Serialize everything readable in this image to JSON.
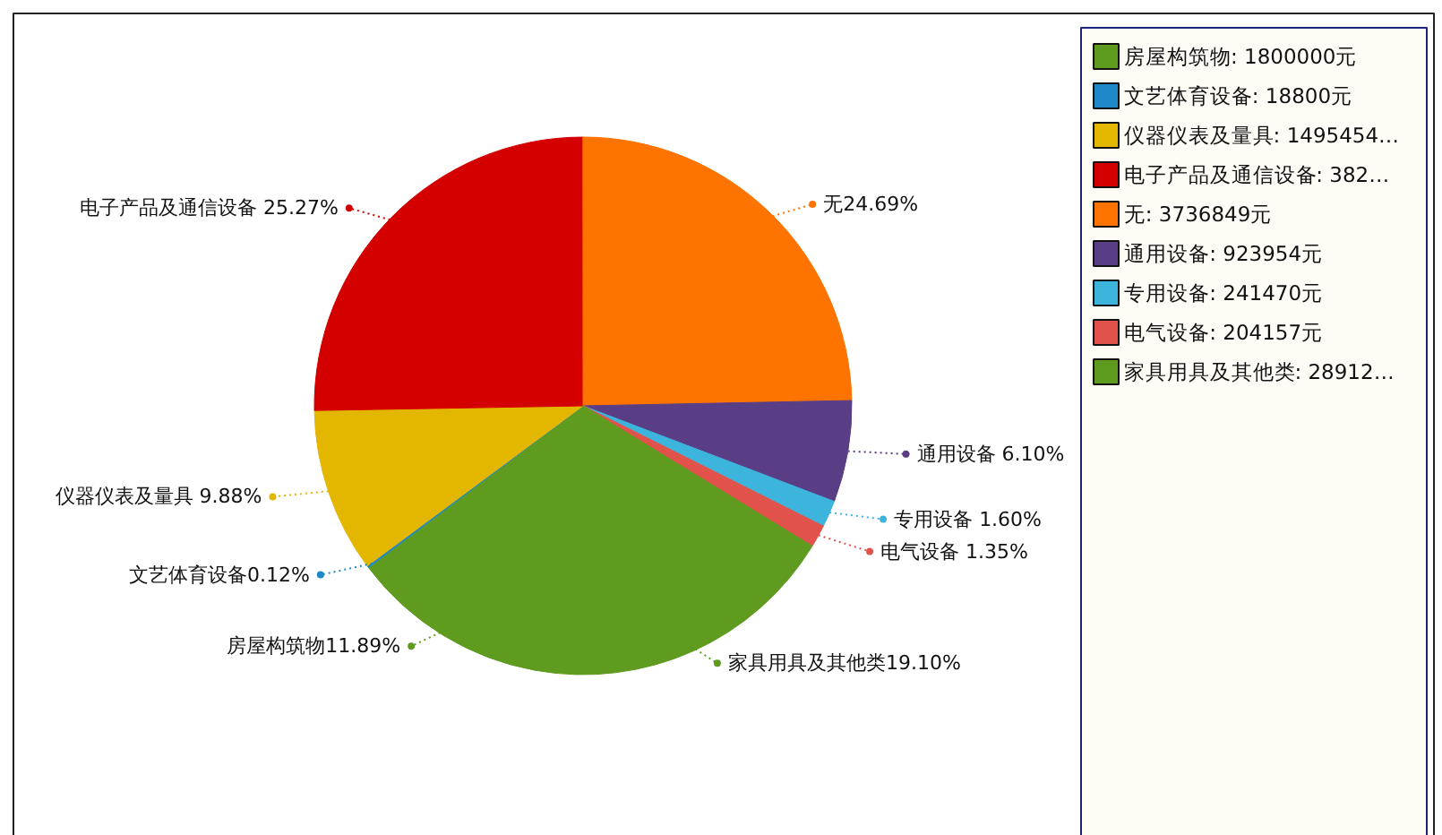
{
  "chart_data": {
    "type": "pie",
    "categories": [
      "房屋构筑物",
      "文艺体育设备",
      "仪器仪表及量具",
      "电子产品及通信设备",
      "无",
      "通用设备",
      "专用设备",
      "电气设备",
      "家具用具及其他类"
    ],
    "values": [
      11.89,
      0.12,
      9.88,
      25.27,
      24.69,
      6.1,
      1.6,
      1.35,
      19.1
    ],
    "colors": [
      "#5f9b1f",
      "#1e88c8",
      "#e3b600",
      "#d40000",
      "#ff7300",
      "#5a3e85",
      "#3cb4dc",
      "#e0524a",
      "#5f9b1f"
    ],
    "value_labels": [
      "房屋构筑物11.89%",
      "文艺体育设备0.12%",
      "仪器仪表及量具 9.88%",
      "电子产品及通信设备 25.27%",
      "无24.69%",
      "通用设备 6.10%",
      "专用设备 1.60%",
      "电气设备 1.35%",
      "家具用具及其他类19.10%"
    ],
    "annotations": [
      ": 1800000元",
      ": 18800元",
      ": 1495454…",
      ": 382…",
      ": 3736849元",
      ": 923954元",
      ": 241470元",
      ": 204157元",
      ": 28912…"
    ],
    "legend": "right"
  }
}
